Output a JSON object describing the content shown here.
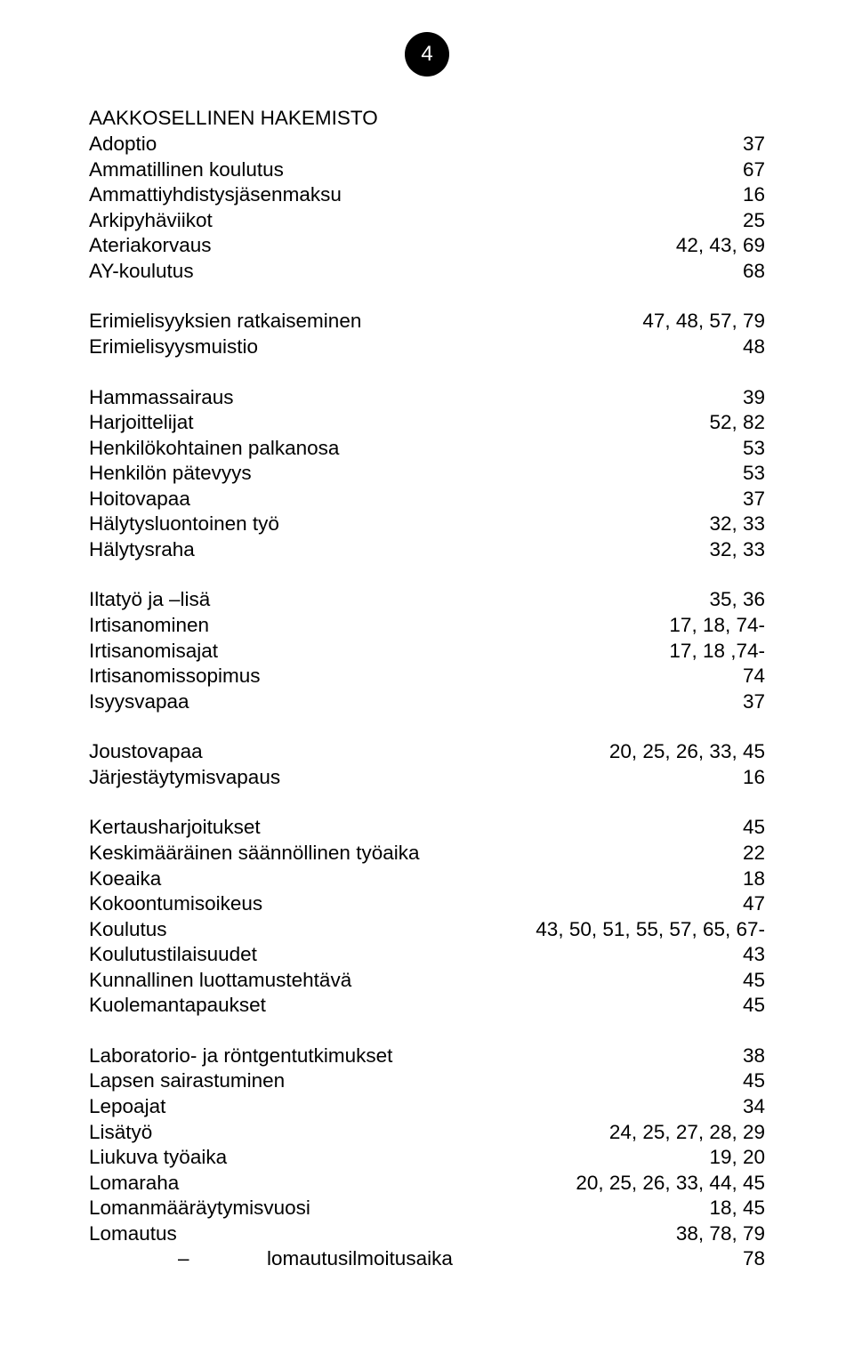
{
  "page_number": "4",
  "heading": "AAKKOSELLINEN HAKEMISTO",
  "text_color": "#000000",
  "background_color": "#ffffff",
  "font_size_pt": 17,
  "groups": [
    {
      "rows": [
        {
          "label": "Adoptio",
          "value": "37"
        },
        {
          "label": "Ammatillinen koulutus",
          "value": "67"
        },
        {
          "label": "Ammattiyhdistysjäsenmaksu",
          "value": "16"
        },
        {
          "label": "Arkipyhäviikot",
          "value": "25"
        },
        {
          "label": "Ateriakorvaus",
          "value": "42, 43, 69"
        },
        {
          "label": "AY-koulutus",
          "value": "68"
        }
      ]
    },
    {
      "rows": [
        {
          "label": "Erimielisyyksien ratkaiseminen",
          "value": "47, 48, 57, 79"
        },
        {
          "label": "Erimielisyysmuistio",
          "value": "48"
        }
      ]
    },
    {
      "rows": [
        {
          "label": "Hammassairaus",
          "value": "39"
        },
        {
          "label": "Harjoittelijat",
          "value": "52, 82"
        },
        {
          "label": "Henkilökohtainen palkanosa",
          "value": "53"
        },
        {
          "label": "Henkilön pätevyys",
          "value": "53"
        },
        {
          "label": "Hoitovapaa",
          "value": "37"
        },
        {
          "label": "Hälytysluontoinen työ",
          "value": "32, 33"
        },
        {
          "label": "Hälytysraha",
          "value": "32, 33"
        }
      ]
    },
    {
      "rows": [
        {
          "label": "Iltatyö ja –lisä",
          "value": "35, 36"
        },
        {
          "label": "Irtisanominen",
          "value": "17, 18, 74-"
        },
        {
          "label": "Irtisanomisajat",
          "value": "17, 18 ,74-"
        },
        {
          "label": "Irtisanomissopimus",
          "value": "74"
        },
        {
          "label": "Isyysvapaa",
          "value": "37"
        }
      ]
    },
    {
      "rows": [
        {
          "label": "Joustovapaa",
          "value": "20, 25, 26, 33, 45"
        },
        {
          "label": "Järjestäytymisvapaus",
          "value": "16"
        }
      ]
    },
    {
      "rows": [
        {
          "label": "Kertausharjoitukset",
          "value": "45"
        },
        {
          "label": "Keskimääräinen säännöllinen työaika",
          "value": "22"
        },
        {
          "label": "Koeaika",
          "value": "18"
        },
        {
          "label": "Kokoontumisoikeus",
          "value": "47"
        },
        {
          "label": "Koulutus",
          "value": "43, 50, 51, 55, 57, 65, 67-"
        },
        {
          "label": "Koulutustilaisuudet",
          "value": "43"
        },
        {
          "label": "Kunnallinen luottamustehtävä",
          "value": "45"
        },
        {
          "label": "Kuolemantapaukset",
          "value": "45"
        }
      ]
    },
    {
      "rows": [
        {
          "label": "Laboratorio- ja röntgentutkimukset",
          "value": "38"
        },
        {
          "label": "Lapsen sairastuminen",
          "value": "45"
        },
        {
          "label": "Lepoajat",
          "value": "34"
        },
        {
          "label": "Lisätyö",
          "value": "24, 25, 27, 28, 29"
        },
        {
          "label": "Liukuva työaika",
          "value": "19, 20"
        },
        {
          "label": "Lomaraha",
          "value": "20, 25, 26, 33, 44, 45"
        },
        {
          "label": "Lomanmääräytymisvuosi",
          "value": "18, 45"
        },
        {
          "label": "Lomautus",
          "value": "38, 78, 79"
        },
        {
          "label": "lomautusilmoitusaika",
          "value": "78",
          "sub": true
        }
      ]
    }
  ]
}
